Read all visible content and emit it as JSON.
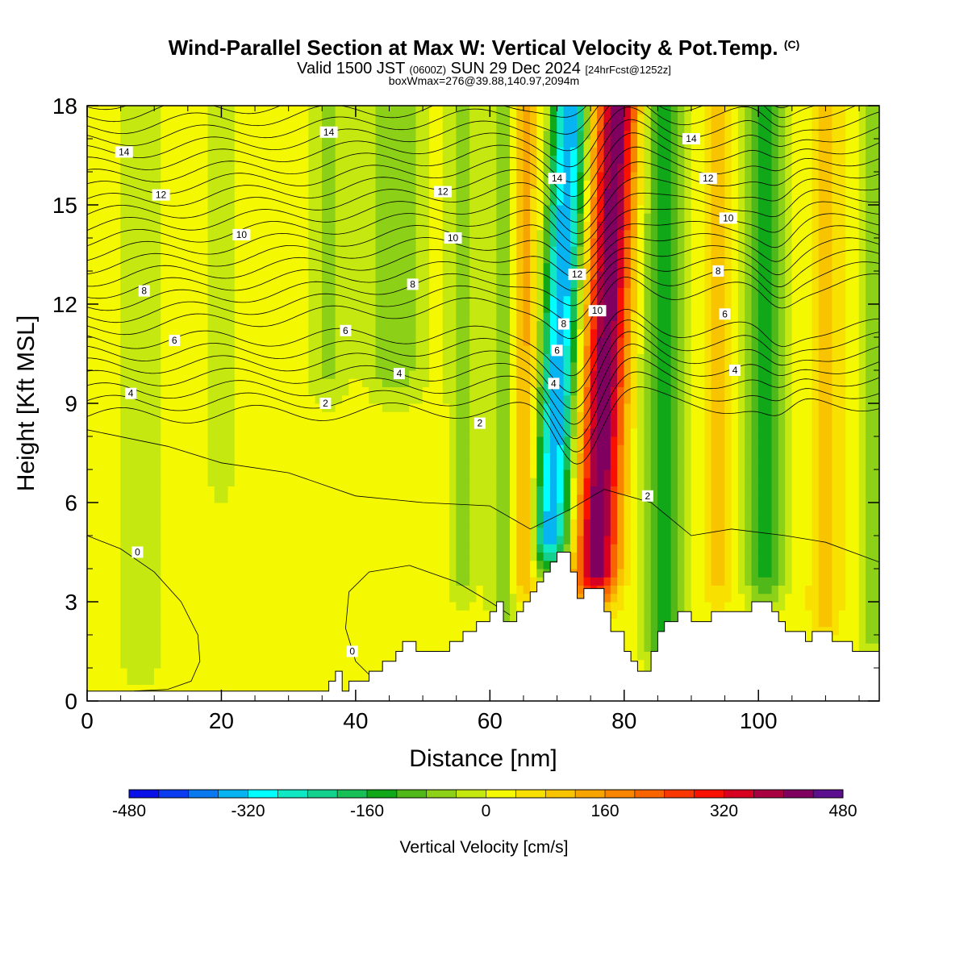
{
  "titles": {
    "main": "Wind-Parallel Section at Max W: Vertical Velocity & Pot.Temp.",
    "copyright": "(C)",
    "valid_prefix": "Valid 1500 JST",
    "valid_zulu": "(0600Z)",
    "valid_date": "SUN 29 Dec 2024",
    "forecast": "[24hrFcst@1252z]",
    "box": "boxWmax=276@39.88,140.97,2094m"
  },
  "chart_data": {
    "type": "heatmap",
    "xlabel": "Distance [nm]",
    "ylabel": "Height [Kft MSL]",
    "xlim": [
      0,
      118
    ],
    "ylim": [
      0,
      18
    ],
    "x_ticks": [
      0,
      20,
      40,
      60,
      80,
      100
    ],
    "y_ticks": [
      0,
      3,
      6,
      9,
      12,
      15,
      18
    ],
    "colorbar": {
      "label": "Vertical Velocity [cm/s]",
      "range": [
        -480,
        480
      ],
      "tick_labels": [
        "-480",
        "-320",
        "-160",
        "0",
        "160",
        "320",
        "480"
      ],
      "colors": [
        "#0a10e8",
        "#0c3cf0",
        "#0a78ee",
        "#06b4f2",
        "#00ffff",
        "#10e8c4",
        "#14d08e",
        "#16c056",
        "#10a818",
        "#50b818",
        "#8cd018",
        "#c4e810",
        "#f4f800",
        "#f8e000",
        "#f8c400",
        "#f8a400",
        "#f88400",
        "#f86400",
        "#f83800",
        "#f81000",
        "#d80020",
        "#a80040",
        "#800060",
        "#5c1090"
      ]
    },
    "terrain": [
      [
        0,
        0.3
      ],
      [
        36,
        0.3
      ],
      [
        36,
        0.6
      ],
      [
        37,
        0.6
      ],
      [
        37,
        0.9
      ],
      [
        38,
        0.9
      ],
      [
        38,
        0.3
      ],
      [
        39,
        0.3
      ],
      [
        39,
        0.6
      ],
      [
        42,
        0.6
      ],
      [
        42,
        0.9
      ],
      [
        44,
        0.9
      ],
      [
        44,
        1.2
      ],
      [
        46,
        1.2
      ],
      [
        46,
        1.5
      ],
      [
        47,
        1.5
      ],
      [
        47,
        1.8
      ],
      [
        49,
        1.8
      ],
      [
        49,
        1.5
      ],
      [
        54,
        1.5
      ],
      [
        54,
        1.8
      ],
      [
        56,
        1.8
      ],
      [
        56,
        2.1
      ],
      [
        58,
        2.1
      ],
      [
        58,
        2.4
      ],
      [
        60,
        2.4
      ],
      [
        60,
        2.7
      ],
      [
        61,
        2.7
      ],
      [
        61,
        3.0
      ],
      [
        62,
        3.0
      ],
      [
        62,
        2.4
      ],
      [
        64,
        2.4
      ],
      [
        64,
        2.7
      ],
      [
        65,
        2.7
      ],
      [
        65,
        3.0
      ],
      [
        66,
        3.0
      ],
      [
        66,
        3.3
      ],
      [
        67,
        3.3
      ],
      [
        67,
        3.6
      ],
      [
        68,
        3.6
      ],
      [
        68,
        3.9
      ],
      [
        69,
        3.9
      ],
      [
        69,
        4.2
      ],
      [
        70,
        4.2
      ],
      [
        70,
        4.5
      ],
      [
        72,
        4.5
      ],
      [
        72,
        3.9
      ],
      [
        73,
        3.9
      ],
      [
        73,
        3.1
      ],
      [
        74,
        3.1
      ],
      [
        74,
        3.4
      ],
      [
        77,
        3.4
      ],
      [
        77,
        2.7
      ],
      [
        78,
        2.7
      ],
      [
        78,
        2.1
      ],
      [
        80,
        2.1
      ],
      [
        80,
        1.5
      ],
      [
        81,
        1.5
      ],
      [
        81,
        1.2
      ],
      [
        82,
        1.2
      ],
      [
        82,
        0.9
      ],
      [
        84,
        0.9
      ],
      [
        84,
        1.5
      ],
      [
        85,
        1.5
      ],
      [
        85,
        2.1
      ],
      [
        86,
        2.1
      ],
      [
        86,
        2.4
      ],
      [
        88,
        2.4
      ],
      [
        88,
        2.7
      ],
      [
        90,
        2.7
      ],
      [
        90,
        2.4
      ],
      [
        93,
        2.4
      ],
      [
        93,
        2.7
      ],
      [
        99,
        2.7
      ],
      [
        99,
        3.0
      ],
      [
        102,
        3.0
      ],
      [
        102,
        2.7
      ],
      [
        103,
        2.7
      ],
      [
        103,
        2.4
      ],
      [
        104,
        2.4
      ],
      [
        104,
        2.1
      ],
      [
        107,
        2.1
      ],
      [
        107,
        1.8
      ],
      [
        108,
        1.8
      ],
      [
        108,
        2.1
      ],
      [
        111,
        2.1
      ],
      [
        111,
        1.8
      ],
      [
        114,
        1.8
      ],
      [
        114,
        1.5
      ],
      [
        118,
        1.5
      ],
      [
        118,
        0
      ]
    ],
    "vertical_velocity_features": [
      {
        "x": 8,
        "y_range": [
          0.5,
          18
        ],
        "w": -60,
        "width": 3
      },
      {
        "x": 20,
        "y_range": [
          6,
          18
        ],
        "w": -50,
        "width": 2
      },
      {
        "x": 36,
        "y_range": [
          9,
          18
        ],
        "w": -70,
        "width": 3
      },
      {
        "x": 46,
        "y_range": [
          9,
          18
        ],
        "w": -90,
        "width": 4
      },
      {
        "x": 56,
        "y_range": [
          3,
          18
        ],
        "w": -90,
        "width": 2
      },
      {
        "x": 62,
        "y_range": [
          2,
          18
        ],
        "w": -100,
        "width": 2
      },
      {
        "x": 65,
        "y_range": [
          3,
          18
        ],
        "w": 120,
        "width": 2
      },
      {
        "x": 70,
        "y_range": [
          4,
          18
        ],
        "w": -380,
        "width": 2.5,
        "tilt": 0.22
      },
      {
        "x": 77,
        "y_range": [
          3,
          18
        ],
        "w": 420,
        "width": 3,
        "tilt": 0.22
      },
      {
        "x": 86,
        "y_range": [
          1,
          18
        ],
        "w": -160,
        "width": 3
      },
      {
        "x": 94,
        "y_range": [
          3,
          18
        ],
        "w": 90,
        "width": 2
      },
      {
        "x": 101,
        "y_range": [
          3,
          18
        ],
        "w": -160,
        "width": 3
      },
      {
        "x": 110,
        "y_range": [
          2,
          18
        ],
        "w": 100,
        "width": 2
      },
      {
        "x": 117,
        "y_range": [
          1,
          18
        ],
        "w": -70,
        "width": 2
      }
    ],
    "isentrope_labels": [
      {
        "text": "0",
        "x": 7.5,
        "y": 4.5
      },
      {
        "text": "0",
        "x": 39.5,
        "y": 1.5
      },
      {
        "text": "2",
        "x": 35.5,
        "y": 9.0
      },
      {
        "text": "2",
        "x": 58.5,
        "y": 8.4
      },
      {
        "text": "2",
        "x": 83.5,
        "y": 6.2
      },
      {
        "text": "4",
        "x": 6.5,
        "y": 9.3
      },
      {
        "text": "4",
        "x": 46.5,
        "y": 9.9
      },
      {
        "text": "4",
        "x": 69.5,
        "y": 9.6
      },
      {
        "text": "4",
        "x": 96.5,
        "y": 10.0
      },
      {
        "text": "6",
        "x": 13,
        "y": 10.9
      },
      {
        "text": "6",
        "x": 38.5,
        "y": 11.2
      },
      {
        "text": "6",
        "x": 70,
        "y": 10.6
      },
      {
        "text": "6",
        "x": 95,
        "y": 11.7
      },
      {
        "text": "8",
        "x": 8.5,
        "y": 12.4
      },
      {
        "text": "8",
        "x": 48.5,
        "y": 12.6
      },
      {
        "text": "8",
        "x": 71,
        "y": 11.4
      },
      {
        "text": "8",
        "x": 94,
        "y": 13.0
      },
      {
        "text": "10",
        "x": 23,
        "y": 14.1
      },
      {
        "text": "10",
        "x": 54.5,
        "y": 14.0
      },
      {
        "text": "10",
        "x": 76,
        "y": 11.8
      },
      {
        "text": "10",
        "x": 95.5,
        "y": 14.6
      },
      {
        "text": "12",
        "x": 11,
        "y": 15.3
      },
      {
        "text": "12",
        "x": 53,
        "y": 15.4
      },
      {
        "text": "12",
        "x": 73,
        "y": 12.9
      },
      {
        "text": "12",
        "x": 92.5,
        "y": 15.8
      },
      {
        "text": "14",
        "x": 5.5,
        "y": 16.6
      },
      {
        "text": "14",
        "x": 36,
        "y": 17.2
      },
      {
        "text": "14",
        "x": 70,
        "y": 15.8
      },
      {
        "text": "14",
        "x": 90,
        "y": 17.0
      }
    ]
  }
}
